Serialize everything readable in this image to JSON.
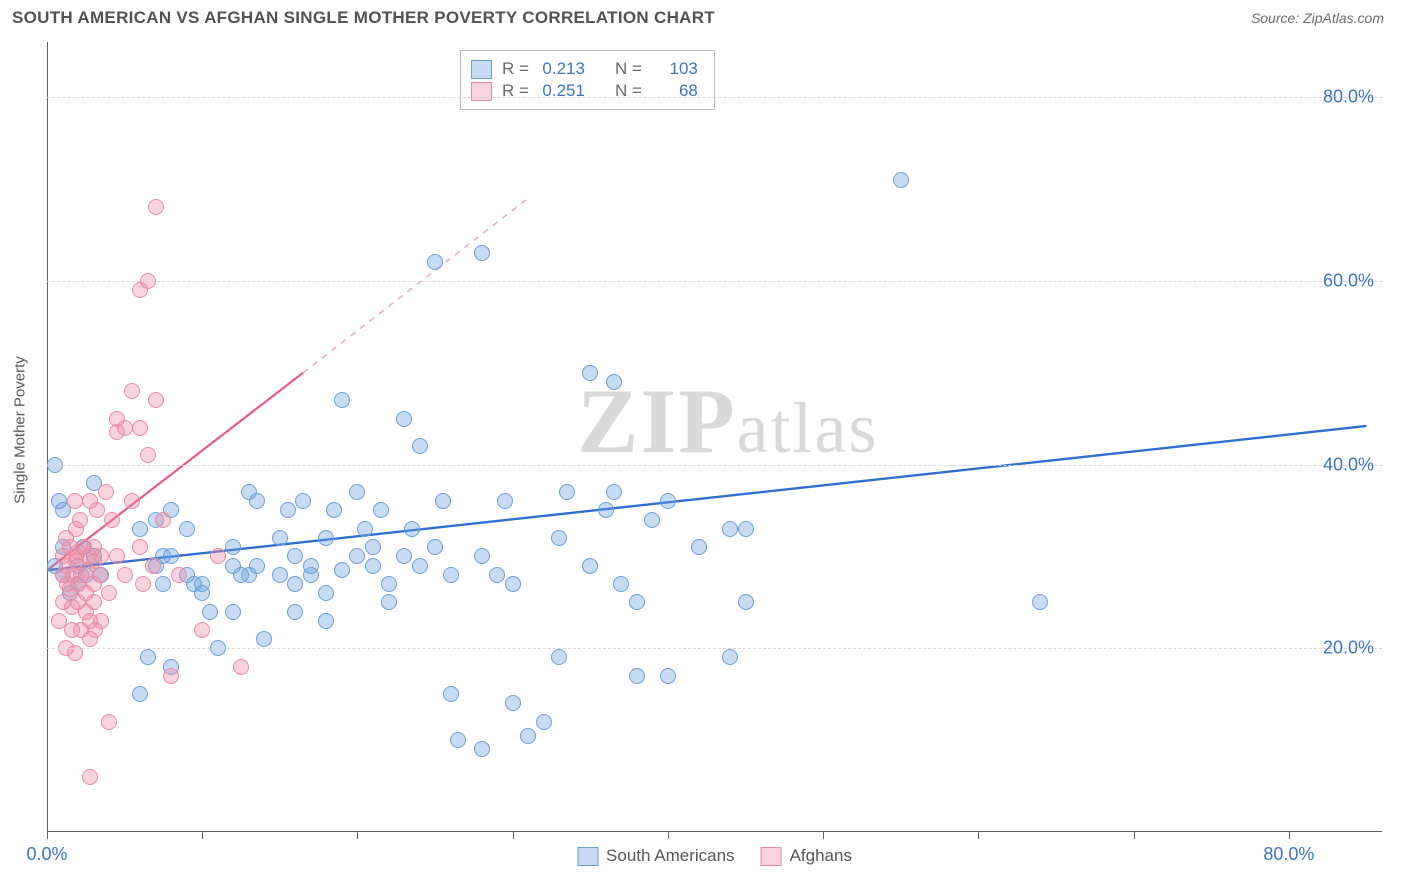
{
  "header": {
    "title": "SOUTH AMERICAN VS AFGHAN SINGLE MOTHER POVERTY CORRELATION CHART",
    "source_prefix": "Source: ",
    "source": "ZipAtlas.com"
  },
  "chart": {
    "type": "scatter",
    "y_axis_title": "Single Mother Poverty",
    "background_color": "#ffffff",
    "grid_color": "#d8d8d8",
    "axis_color": "#626262",
    "tick_label_color": "#3b74c5",
    "tick_fontsize": 18,
    "xlim": [
      0,
      86
    ],
    "ylim": [
      0,
      86
    ],
    "y_ticks": [
      20,
      40,
      60,
      80
    ],
    "y_tick_labels": [
      "20.0%",
      "40.0%",
      "60.0%",
      "80.0%"
    ],
    "x_ticks": [
      0,
      10,
      20,
      30,
      40,
      50,
      60,
      70,
      80
    ],
    "x_tick_labels_shown": {
      "0": "0.0%",
      "80": "80.0%"
    },
    "marker_radius": 8,
    "watermark": {
      "zip": "ZIP",
      "atlas": "atlas"
    }
  },
  "series": [
    {
      "id": "south_americans",
      "label": "South Americans",
      "color_fill": "rgba(108,160,220,0.38)",
      "color_stroke": "#6aa0dc",
      "trend": {
        "x1": 0,
        "y1": 28.5,
        "x2": 85,
        "y2": 44.2,
        "ext_to": [
          85,
          44.2
        ],
        "color": "#2f6fcf",
        "width": 2.4
      },
      "R": "0.213",
      "N": "103",
      "points": [
        [
          0.5,
          29
        ],
        [
          0.8,
          36
        ],
        [
          0.5,
          40
        ],
        [
          1,
          35
        ],
        [
          1,
          31
        ],
        [
          1,
          28
        ],
        [
          1.5,
          26
        ],
        [
          2,
          27
        ],
        [
          2,
          29
        ],
        [
          2.3,
          31
        ],
        [
          2.5,
          28
        ],
        [
          3,
          38
        ],
        [
          3,
          30
        ],
        [
          3.5,
          28
        ],
        [
          6,
          33
        ],
        [
          6,
          15
        ],
        [
          6.5,
          19
        ],
        [
          7,
          29
        ],
        [
          7,
          34
        ],
        [
          7.5,
          27
        ],
        [
          7.5,
          30
        ],
        [
          8,
          35
        ],
        [
          8,
          30
        ],
        [
          8,
          18
        ],
        [
          9,
          28
        ],
        [
          9,
          33
        ],
        [
          9.5,
          27
        ],
        [
          10,
          27
        ],
        [
          10,
          26
        ],
        [
          10.5,
          24
        ],
        [
          11,
          20
        ],
        [
          12,
          31
        ],
        [
          12,
          29
        ],
        [
          12,
          24
        ],
        [
          12.5,
          28
        ],
        [
          13,
          37
        ],
        [
          13,
          28
        ],
        [
          13.5,
          29
        ],
        [
          13.5,
          36
        ],
        [
          14,
          21
        ],
        [
          15,
          32
        ],
        [
          15,
          28
        ],
        [
          15.5,
          35
        ],
        [
          16,
          24
        ],
        [
          16,
          27
        ],
        [
          16,
          30
        ],
        [
          16.5,
          36
        ],
        [
          17,
          28
        ],
        [
          17,
          29
        ],
        [
          18,
          32
        ],
        [
          18,
          23
        ],
        [
          18,
          26
        ],
        [
          18.5,
          35
        ],
        [
          19,
          28.5
        ],
        [
          19,
          47
        ],
        [
          20,
          30
        ],
        [
          20,
          37
        ],
        [
          20.5,
          33
        ],
        [
          21,
          31
        ],
        [
          21,
          29
        ],
        [
          21.5,
          35
        ],
        [
          22,
          27
        ],
        [
          22,
          25
        ],
        [
          23,
          45
        ],
        [
          23,
          30
        ],
        [
          23.5,
          33
        ],
        [
          24,
          42
        ],
        [
          24,
          29
        ],
        [
          25,
          31
        ],
        [
          25,
          62
        ],
        [
          25.5,
          36
        ],
        [
          26,
          28
        ],
        [
          26,
          15
        ],
        [
          26.5,
          10
        ],
        [
          28,
          30
        ],
        [
          28,
          9
        ],
        [
          28,
          63
        ],
        [
          29,
          28
        ],
        [
          29.5,
          36
        ],
        [
          30,
          27
        ],
        [
          30,
          14
        ],
        [
          31,
          10.5
        ],
        [
          32,
          12
        ],
        [
          33,
          19
        ],
        [
          33,
          32
        ],
        [
          33.5,
          37
        ],
        [
          35,
          50
        ],
        [
          35,
          29
        ],
        [
          36,
          35
        ],
        [
          36.5,
          37
        ],
        [
          36.5,
          49
        ],
        [
          37,
          27
        ],
        [
          38,
          17
        ],
        [
          38,
          25
        ],
        [
          39,
          34
        ],
        [
          40,
          17
        ],
        [
          40,
          36
        ],
        [
          42,
          31
        ],
        [
          44,
          33
        ],
        [
          44,
          19
        ],
        [
          45,
          25
        ],
        [
          45,
          33
        ],
        [
          64,
          25
        ],
        [
          55,
          71
        ]
      ]
    },
    {
      "id": "afghans",
      "label": "Afghans",
      "color_fill": "rgba(236,138,164,0.38)",
      "color_stroke": "#ec8aa4",
      "trend": {
        "x1": 0,
        "y1": 28.5,
        "x2": 16.5,
        "y2": 50,
        "ext_to": [
          31,
          69
        ],
        "color": "#e45d87",
        "width": 2.2
      },
      "R": "0.251",
      "N": "68",
      "points": [
        [
          0.8,
          23
        ],
        [
          1,
          25
        ],
        [
          1,
          28
        ],
        [
          1,
          30
        ],
        [
          1.2,
          32
        ],
        [
          1.2,
          20
        ],
        [
          1.3,
          27
        ],
        [
          1.3,
          29
        ],
        [
          1.5,
          26.5
        ],
        [
          1.5,
          31
        ],
        [
          1.6,
          22
        ],
        [
          1.6,
          24.5
        ],
        [
          1.7,
          28
        ],
        [
          1.8,
          19.5
        ],
        [
          1.8,
          36
        ],
        [
          1.9,
          33
        ],
        [
          1.9,
          30
        ],
        [
          1.9,
          29.5
        ],
        [
          2,
          25
        ],
        [
          2,
          27
        ],
        [
          2,
          30.5
        ],
        [
          2.1,
          34
        ],
        [
          2.2,
          22
        ],
        [
          2.2,
          28
        ],
        [
          2.4,
          31
        ],
        [
          2.5,
          24
        ],
        [
          2.5,
          26
        ],
        [
          2.6,
          28.5
        ],
        [
          2.7,
          30
        ],
        [
          2.8,
          21
        ],
        [
          2.8,
          36
        ],
        [
          2.8,
          23
        ],
        [
          2.8,
          6
        ],
        [
          3,
          27
        ],
        [
          3,
          31
        ],
        [
          3,
          25
        ],
        [
          3,
          29.5
        ],
        [
          3.1,
          22
        ],
        [
          3.2,
          35
        ],
        [
          3.4,
          28
        ],
        [
          3.5,
          30
        ],
        [
          3.5,
          23
        ],
        [
          3.8,
          37
        ],
        [
          4,
          26
        ],
        [
          4,
          12
        ],
        [
          4.2,
          34
        ],
        [
          4.5,
          30
        ],
        [
          4.5,
          45
        ],
        [
          4.5,
          43.5
        ],
        [
          5,
          28
        ],
        [
          5,
          44
        ],
        [
          5.5,
          36
        ],
        [
          5.5,
          48
        ],
        [
          6,
          31
        ],
        [
          6,
          44
        ],
        [
          6,
          59
        ],
        [
          6.2,
          27
        ],
        [
          6.5,
          41
        ],
        [
          6.5,
          60
        ],
        [
          6.8,
          29
        ],
        [
          7,
          47
        ],
        [
          7,
          68
        ],
        [
          7.5,
          34
        ],
        [
          8,
          17
        ],
        [
          8.5,
          28
        ],
        [
          10,
          22
        ],
        [
          11,
          30
        ],
        [
          12.5,
          18
        ]
      ]
    }
  ],
  "legend_top": {
    "rows": [
      {
        "swatch_fill": "#c7dbf4",
        "swatch_border": "#6aa0dc",
        "R": "0.213",
        "N": "103"
      },
      {
        "swatch_fill": "#f6d3de",
        "swatch_border": "#ec8aa4",
        "R": "0.251",
        "N": "68"
      }
    ],
    "label_R": "R =",
    "label_N": "N ="
  },
  "legend_bottom": {
    "items": [
      {
        "swatch_fill": "#c7dbf4",
        "swatch_border": "#6aa0dc",
        "label": "South Americans"
      },
      {
        "swatch_fill": "#f6d3de",
        "swatch_border": "#ec8aa4",
        "label": "Afghans"
      }
    ]
  }
}
